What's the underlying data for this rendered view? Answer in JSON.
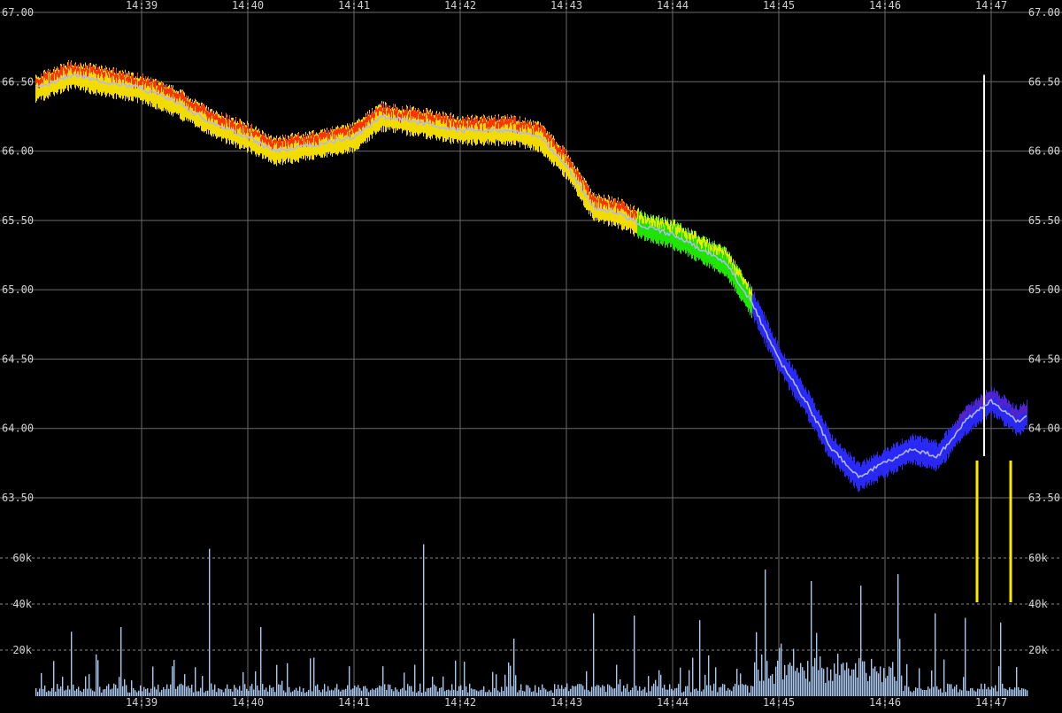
{
  "chart_data": {
    "type": "line",
    "x_ticks": [
      "14:39",
      "14:40",
      "14:41",
      "14:42",
      "14:43",
      "14:44",
      "14:45",
      "14:46",
      "14:47"
    ],
    "x_range": [
      "14:38:00",
      "14:47:20"
    ],
    "price": {
      "ylim": [
        63.0,
        67.0
      ],
      "y_ticks": [
        "63.50",
        "64.00",
        "64.50",
        "65.00",
        "65.50",
        "66.00",
        "66.50",
        "67.00"
      ],
      "series": [
        {
          "x": [
            "14:38:00",
            "14:38:20",
            "14:38:40",
            "14:39:00",
            "14:39:20",
            "14:39:40",
            "14:40:00",
            "14:40:15",
            "14:40:40",
            "14:41:00",
            "14:41:15",
            "14:41:40",
            "14:42:00",
            "14:42:30",
            "14:42:45",
            "14:43:00",
            "14:43:15",
            "14:43:30",
            "14:43:45",
            "14:44:00",
            "14:44:15",
            "14:44:30",
            "14:44:45",
            "14:45:00",
            "14:45:15",
            "14:45:30",
            "14:45:45",
            "14:46:00",
            "14:46:15",
            "14:46:30",
            "14:46:45",
            "14:47:00",
            "14:47:15",
            "14:47:20"
          ],
          "values": [
            66.45,
            66.55,
            66.5,
            66.45,
            66.35,
            66.2,
            66.1,
            66.0,
            66.05,
            66.1,
            66.25,
            66.2,
            66.15,
            66.15,
            66.1,
            65.9,
            65.6,
            65.55,
            65.45,
            65.4,
            65.3,
            65.2,
            64.9,
            64.5,
            64.2,
            63.85,
            63.65,
            63.75,
            63.85,
            63.8,
            64.05,
            64.2,
            64.05,
            64.1
          ],
          "color": "#b0b8ff",
          "band_colors": [
            "#ff2000",
            "#ffe800",
            "#20f000",
            "#2a2aff",
            "#6020c0"
          ]
        }
      ],
      "spike": {
        "x": "14:46:56",
        "values": [
          63.8,
          66.55
        ]
      }
    },
    "volume": {
      "ylim": [
        0,
        70000
      ],
      "y_ticks": [
        "20k",
        "40k",
        "60k"
      ],
      "color": "#a8c8f0",
      "peaks": [
        {
          "x": "14:38:20",
          "value": 28000
        },
        {
          "x": "14:38:48",
          "value": 30000
        },
        {
          "x": "14:39:38",
          "value": 64000
        },
        {
          "x": "14:40:07",
          "value": 30000
        },
        {
          "x": "14:41:39",
          "value": 66000
        },
        {
          "x": "14:42:30",
          "value": 25000
        },
        {
          "x": "14:43:15",
          "value": 36000
        },
        {
          "x": "14:43:38",
          "value": 35000
        },
        {
          "x": "14:44:15",
          "value": 33000
        },
        {
          "x": "14:44:52",
          "value": 55000
        },
        {
          "x": "14:45:18",
          "value": 50000
        },
        {
          "x": "14:45:46",
          "value": 48000
        },
        {
          "x": "14:46:07",
          "value": 53000
        },
        {
          "x": "14:46:28",
          "value": 36000
        },
        {
          "x": "14:46:45",
          "value": 34000
        },
        {
          "x": "14:47:05",
          "value": 32000
        }
      ]
    },
    "grid": true
  }
}
